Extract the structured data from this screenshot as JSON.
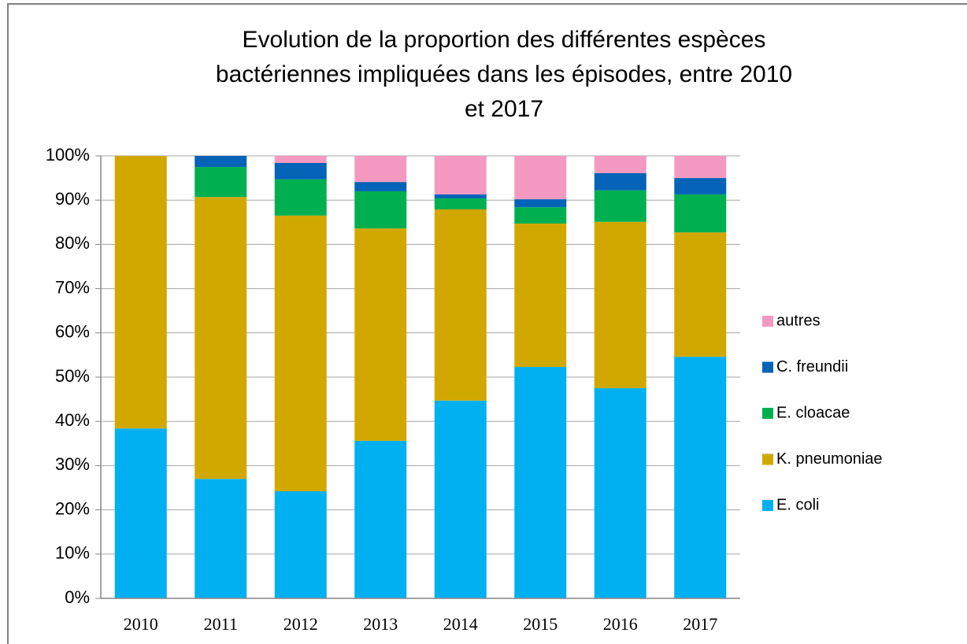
{
  "chart_data": {
    "type": "stacked_bar",
    "title": [
      "Evolution de la proportion des différentes espèces",
      "bactériennes impliquées dans les épisodes, entre 2010",
      "et 2017"
    ],
    "categories": [
      "2010",
      "2011",
      "2012",
      "2013",
      "2014",
      "2015",
      "2016",
      "2017"
    ],
    "series": [
      {
        "name": "E. coli",
        "color": "#00b0f0",
        "values": [
          38.4,
          27.0,
          24.2,
          35.6,
          44.7,
          52.3,
          47.5,
          54.6
        ]
      },
      {
        "name": "K. pneumoniae",
        "color": "#d1a800",
        "values": [
          61.6,
          63.7,
          62.3,
          48.0,
          43.2,
          32.4,
          37.6,
          28.1
        ]
      },
      {
        "name": "E. cloacae",
        "color": "#00b050",
        "values": [
          0,
          6.8,
          8.2,
          8.4,
          2.5,
          3.7,
          7.1,
          8.6
        ]
      },
      {
        "name": "C. freundii",
        "color": "#0563b8",
        "values": [
          0,
          2.5,
          3.7,
          2.1,
          0.9,
          1.8,
          3.9,
          3.7
        ]
      },
      {
        "name": "autres",
        "color": "#f49ac1",
        "values": [
          0,
          0,
          1.6,
          5.9,
          8.7,
          9.8,
          3.9,
          5.0
        ]
      }
    ],
    "ylim": [
      0,
      100
    ],
    "yticks": [
      {
        "value": 0,
        "label": "0%"
      },
      {
        "value": 10,
        "label": "10%"
      },
      {
        "value": 20,
        "label": "20%"
      },
      {
        "value": 30,
        "label": "30%"
      },
      {
        "value": 40,
        "label": "40%"
      },
      {
        "value": 50,
        "label": "50%"
      },
      {
        "value": 60,
        "label": "60%"
      },
      {
        "value": 70,
        "label": "70%"
      },
      {
        "value": 80,
        "label": "80%"
      },
      {
        "value": 90,
        "label": "90%"
      },
      {
        "value": 100,
        "label": "100%"
      }
    ],
    "grid": true,
    "legend": "right"
  }
}
